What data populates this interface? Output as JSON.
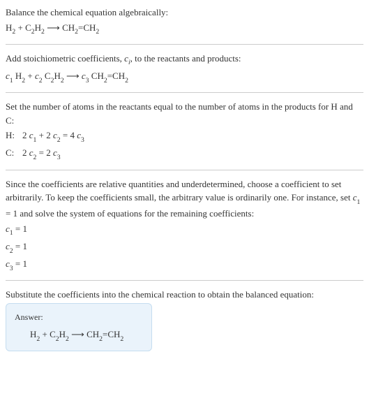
{
  "section1": {
    "title": "Balance the chemical equation algebraically:",
    "equation_parts": {
      "r1": "H",
      "r1sub": "2",
      "plus": " + ",
      "r2a": "C",
      "r2asub": "2",
      "r2b": "H",
      "r2bsub": "2",
      "arrow": "  ⟶  ",
      "p1a": "CH",
      "p1asub": "2",
      "p1eq": "=CH",
      "p1bsub": "2"
    }
  },
  "section2": {
    "title_pre": "Add stoichiometric coefficients, ",
    "title_ci": "c",
    "title_ci_sub": "i",
    "title_post": ", to the reactants and products:",
    "eq": {
      "c1": "c",
      "c1sub": "1",
      "sp1": " ",
      "r1": "H",
      "r1sub": "2",
      "plus": " + ",
      "c2": "c",
      "c2sub": "2",
      "sp2": " ",
      "r2a": "C",
      "r2asub": "2",
      "r2b": "H",
      "r2bsub": "2",
      "arrow": "  ⟶  ",
      "c3": "c",
      "c3sub": "3",
      "sp3": " ",
      "p1a": "CH",
      "p1asub": "2",
      "p1eq": "=CH",
      "p1bsub": "2"
    }
  },
  "section3": {
    "title": "Set the number of atoms in the reactants equal to the number of atoms in the products for H and C:",
    "row1": {
      "label": "H: ",
      "t1": "2 ",
      "c1": "c",
      "c1sub": "1",
      "t2": " + 2 ",
      "c2": "c",
      "c2sub": "2",
      "t3": " = 4 ",
      "c3": "c",
      "c3sub": "3"
    },
    "row2": {
      "label": "C: ",
      "t1": "2 ",
      "c1": "c",
      "c1sub": "2",
      "t2": " = 2 ",
      "c2": "c",
      "c2sub": "3"
    }
  },
  "section4": {
    "text_pre": "Since the coefficients are relative quantities and underdetermined, choose a coefficient to set arbitrarily. To keep the coefficients small, the arbitrary value is ordinarily one. For instance, set ",
    "c1": "c",
    "c1sub": "1",
    "text_post": " = 1 and solve the system of equations for the remaining coefficients:",
    "line1": {
      "c": "c",
      "csub": "1",
      "eq": " = 1"
    },
    "line2": {
      "c": "c",
      "csub": "2",
      "eq": " = 1"
    },
    "line3": {
      "c": "c",
      "csub": "3",
      "eq": " = 1"
    }
  },
  "section5": {
    "title": "Substitute the coefficients into the chemical reaction to obtain the balanced equation:",
    "answer_label": "Answer:",
    "eq": {
      "r1": "H",
      "r1sub": "2",
      "plus": " + ",
      "r2a": "C",
      "r2asub": "2",
      "r2b": "H",
      "r2bsub": "2",
      "arrow": "  ⟶  ",
      "p1a": "CH",
      "p1asub": "2",
      "p1eq": "=CH",
      "p1bsub": "2"
    }
  },
  "colors": {
    "text": "#333333",
    "divider": "#cccccc",
    "answer_bg": "#eaf3fb",
    "answer_border": "#c5ddf0"
  }
}
